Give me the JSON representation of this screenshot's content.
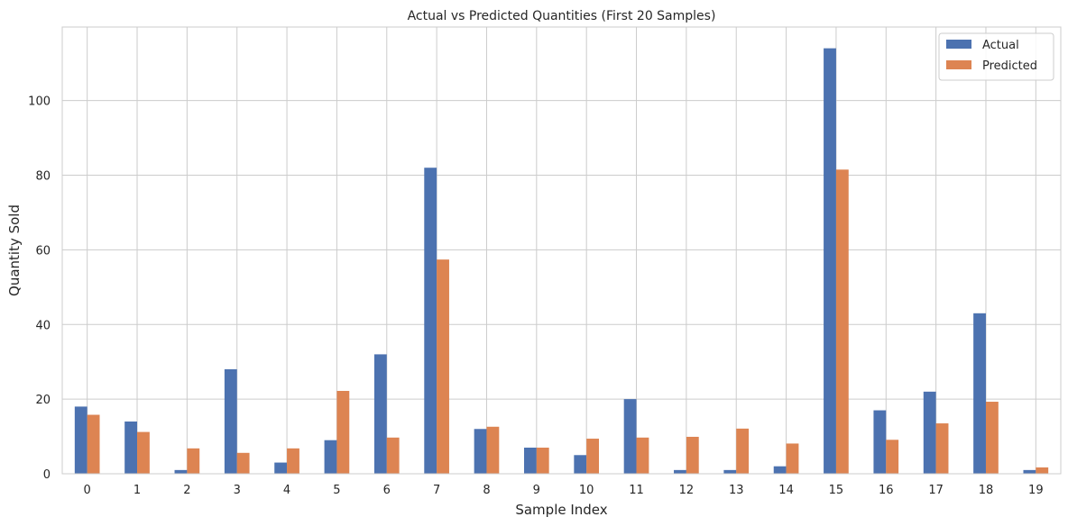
{
  "chart_data": {
    "type": "bar",
    "title": "Actual vs Predicted Quantities (First 20 Samples)",
    "xlabel": "Sample Index",
    "ylabel": "Quantity Sold",
    "categories": [
      "0",
      "1",
      "2",
      "3",
      "4",
      "5",
      "6",
      "7",
      "8",
      "9",
      "10",
      "11",
      "12",
      "13",
      "14",
      "15",
      "16",
      "17",
      "18",
      "19"
    ],
    "series": [
      {
        "name": "Actual",
        "color": "#4c72b0",
        "values": [
          18,
          14,
          1,
          28,
          3,
          9,
          32,
          82,
          12,
          7,
          5,
          20,
          1,
          1,
          2,
          114,
          17,
          22,
          43,
          1
        ]
      },
      {
        "name": "Predicted",
        "color": "#dd8452",
        "values": [
          15.8,
          11.2,
          6.8,
          5.6,
          6.8,
          22.2,
          9.7,
          57.4,
          12.6,
          7.0,
          9.4,
          9.7,
          9.9,
          12.1,
          8.1,
          81.5,
          9.1,
          13.5,
          19.3,
          1.7
        ]
      }
    ],
    "ylim": [
      0,
      119.7
    ],
    "yticks": [
      0,
      20,
      40,
      60,
      80,
      100
    ],
    "grid": true,
    "legend_position": "top-right"
  }
}
